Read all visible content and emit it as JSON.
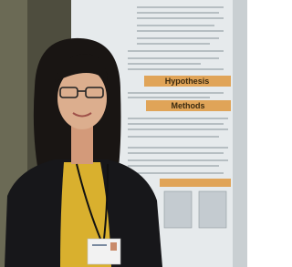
{
  "poster": {
    "headings": [
      "Hypothesis",
      "Methods"
    ]
  }
}
